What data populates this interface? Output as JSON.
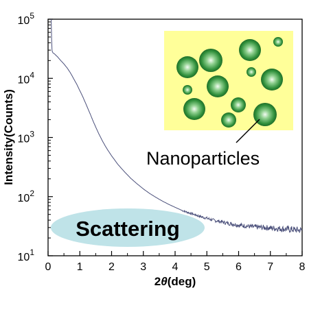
{
  "chart_data": {
    "type": "line",
    "title": "",
    "xlabel": "2θ(deg)",
    "xlabel_main": "2",
    "xlabel_italic": "θ",
    "xlabel_unit": "(deg)",
    "ylabel": "Intensity(Counts)",
    "xlim": [
      0,
      8
    ],
    "ylim": [
      10,
      100000
    ],
    "y_scale": "log",
    "grid": false,
    "x_ticks": [
      "0",
      "1",
      "2",
      "3",
      "4",
      "5",
      "6",
      "7",
      "8"
    ],
    "y_ticks": [
      {
        "base": "10",
        "exp": "1"
      },
      {
        "base": "10",
        "exp": "2"
      },
      {
        "base": "10",
        "exp": "3"
      },
      {
        "base": "10",
        "exp": "4"
      },
      {
        "base": "10",
        "exp": "5"
      }
    ],
    "series": [
      {
        "color": "#4a4f7a",
        "x": [
          0.1,
          0.12,
          0.15,
          0.2,
          0.3,
          0.4,
          0.5,
          0.6,
          0.7,
          0.8,
          0.9,
          1.0,
          1.1,
          1.2,
          1.3,
          1.4,
          1.5,
          1.6,
          1.7,
          1.8,
          1.9,
          2.0,
          2.2,
          2.4,
          2.6,
          2.8,
          3.0,
          3.2,
          3.4,
          3.6,
          3.8,
          4.0,
          4.2,
          4.4,
          4.6,
          4.8,
          5.0,
          5.2,
          5.4,
          5.6,
          5.8,
          6.0,
          6.2,
          6.4,
          6.6,
          6.8,
          7.0,
          7.2,
          7.4,
          7.6,
          7.8,
          8.0
        ],
        "y": [
          100000,
          30000,
          27000,
          26000,
          23000,
          20000,
          17500,
          15000,
          12500,
          10000,
          8000,
          6200,
          4800,
          3600,
          2700,
          2000,
          1500,
          1150,
          900,
          720,
          590,
          490,
          350,
          265,
          205,
          165,
          135,
          113,
          97,
          84,
          74,
          66,
          59,
          54,
          50,
          46,
          43,
          40,
          38,
          36,
          34.5,
          33,
          32,
          31,
          30.5,
          30,
          29.5,
          29,
          28.5,
          28,
          27.5,
          27
        ]
      }
    ],
    "annotations": [
      {
        "text": "Nanoparticles",
        "points_to": "nanoparticle in inset"
      },
      {
        "text": "Scattering",
        "shape": "ellipse",
        "fill": "#bfe3e8"
      }
    ],
    "inset": {
      "background": "#ffff99",
      "particle_color": "#2e8b3a"
    }
  }
}
